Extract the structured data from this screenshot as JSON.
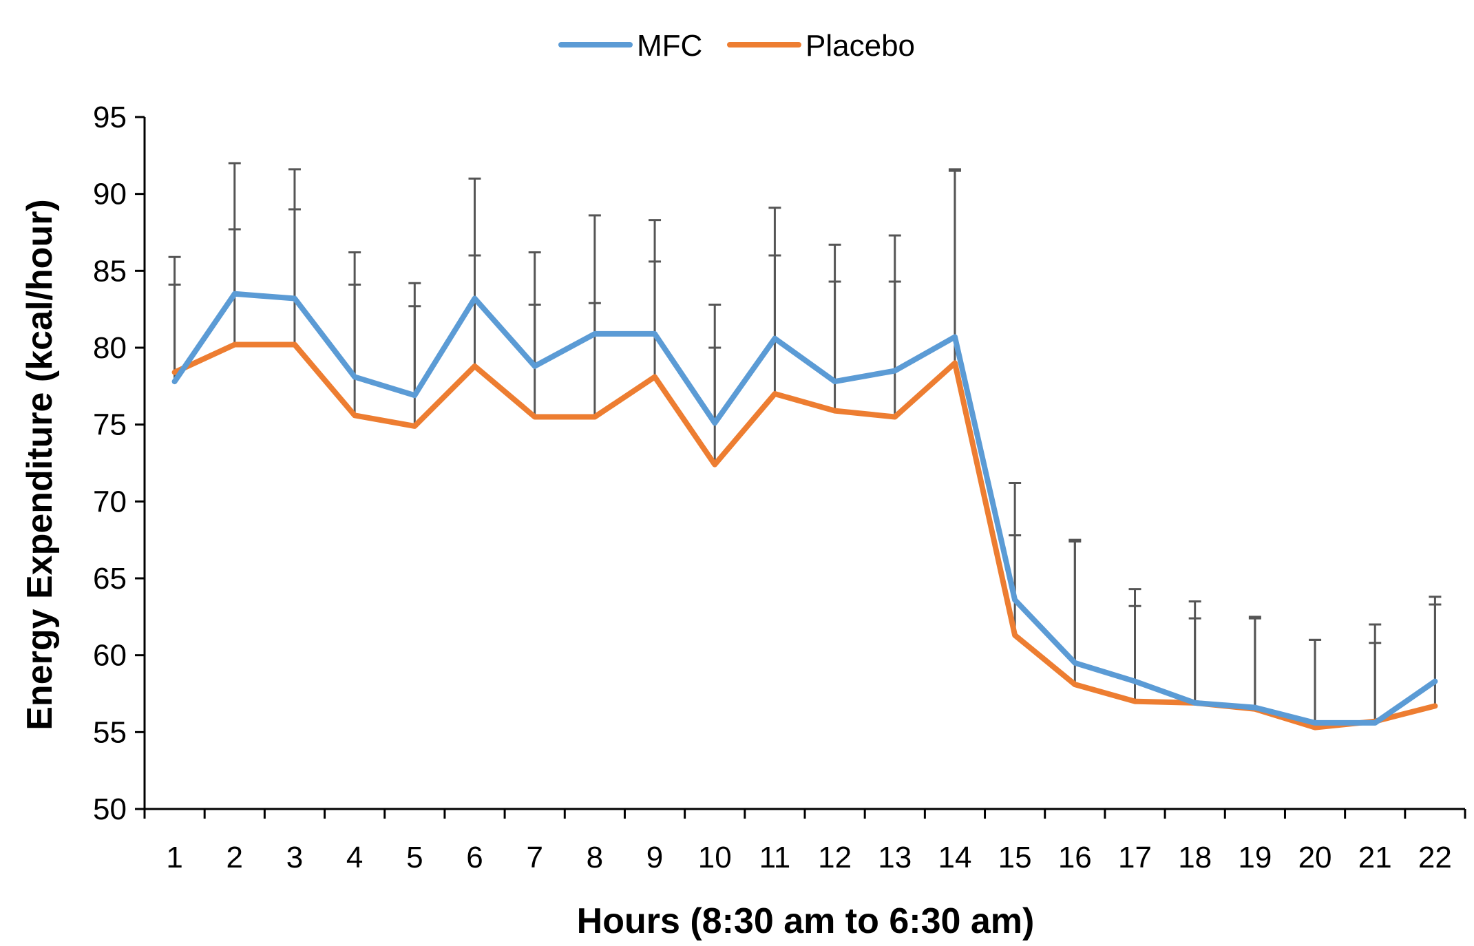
{
  "chart_data": {
    "type": "line",
    "title": "",
    "xlabel": "Hours (8:30 am to 6:30 am)",
    "ylabel": "Energy Expenditure (kcal/hour)",
    "ylim": [
      50,
      95
    ],
    "yticks": [
      50,
      55,
      60,
      65,
      70,
      75,
      80,
      85,
      90,
      95
    ],
    "categories": [
      "1",
      "2",
      "3",
      "4",
      "5",
      "6",
      "7",
      "8",
      "9",
      "10",
      "11",
      "12",
      "13",
      "14",
      "15",
      "16",
      "17",
      "18",
      "19",
      "20",
      "21",
      "22"
    ],
    "grid": false,
    "legend": "top-center",
    "series": [
      {
        "name": "MFC",
        "color": "#5B9BD5",
        "values": [
          77.8,
          83.5,
          83.2,
          78.1,
          76.9,
          83.2,
          78.8,
          80.9,
          80.9,
          75.1,
          80.6,
          77.8,
          78.5,
          80.7,
          63.6,
          59.5,
          58.3,
          56.9,
          56.6,
          55.6,
          55.6,
          58.3
        ],
        "error_top": [
          84.1,
          87.7,
          89.0,
          84.1,
          82.7,
          86.0,
          82.8,
          82.9,
          85.6,
          80.0,
          86.0,
          84.3,
          84.3,
          91.6,
          67.8,
          67.4,
          63.2,
          62.4,
          62.4,
          61.0,
          60.8,
          63.3
        ]
      },
      {
        "name": "Placebo",
        "color": "#ED7D31",
        "values": [
          78.4,
          80.2,
          80.2,
          75.6,
          74.9,
          78.8,
          75.5,
          75.5,
          78.1,
          72.4,
          77.0,
          75.9,
          75.5,
          79.0,
          61.3,
          58.1,
          57.0,
          56.9,
          56.5,
          55.3,
          55.7,
          56.7
        ],
        "error_top": [
          85.9,
          92.0,
          91.6,
          86.2,
          84.2,
          91.0,
          86.2,
          88.6,
          88.3,
          82.8,
          89.1,
          86.7,
          87.3,
          91.5,
          71.2,
          67.5,
          64.3,
          63.5,
          62.5,
          61.0,
          62.0,
          63.8
        ]
      }
    ]
  }
}
